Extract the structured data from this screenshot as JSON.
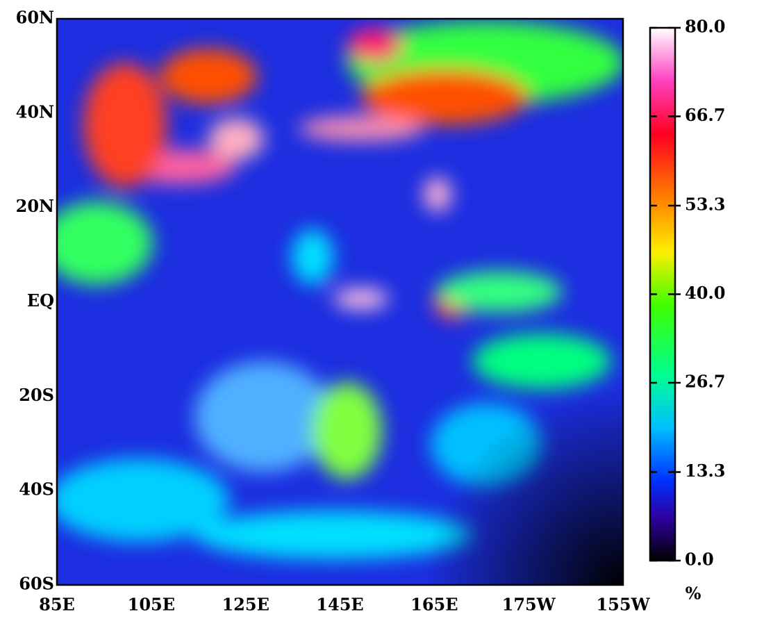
{
  "map": {
    "x_labels": [
      "85E",
      "105E",
      "125E",
      "145E",
      "165E",
      "175W",
      "155W"
    ],
    "y_labels": [
      "60N",
      "40N",
      "20N",
      "EQ",
      "20S",
      "40S",
      "60S"
    ]
  },
  "colorbar": {
    "lim": [
      0,
      80
    ],
    "ticks": [
      {
        "value": 0,
        "label": "0.0"
      },
      13.3,
      26.7,
      {
        "value": 40,
        "label": "40.0"
      },
      53.3,
      66.7,
      {
        "value": 80,
        "label": "80.0"
      }
    ],
    "unit": "%"
  }
}
